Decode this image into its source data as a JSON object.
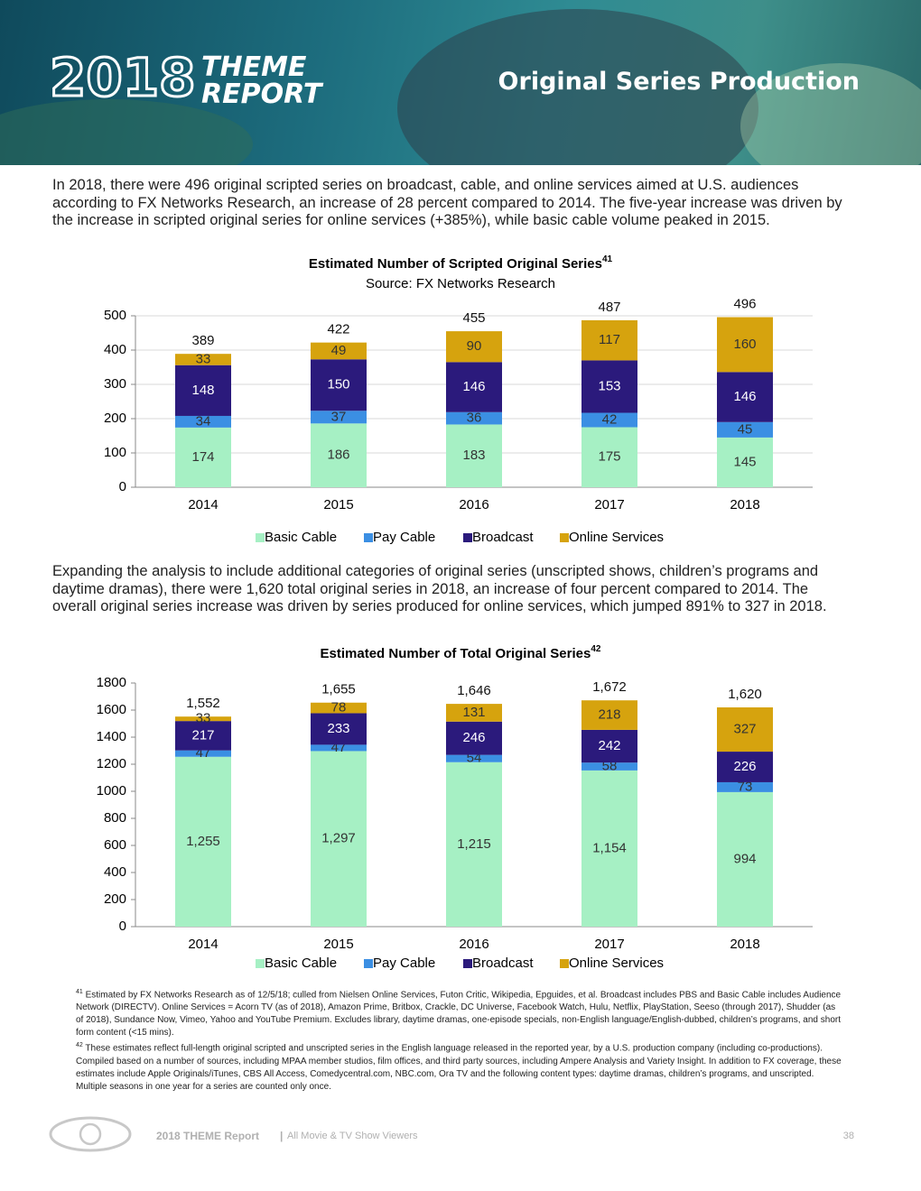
{
  "header": {
    "year": "2018",
    "theme": "THEME",
    "report": "REPORT",
    "title": "Original Series Production"
  },
  "paragraphs": [
    "In 2018, there were 496 original scripted series on broadcast, cable, and online services aimed at U.S. audiences according to FX Networks Research, an increase of 28 percent compared to 2014. The five-year increase was driven by the increase in scripted original series for online services (+385%), while basic cable volume peaked in 2015.",
    "Expanding the analysis to include additional categories of original series (unscripted shows, children’s programs and daytime dramas), there were 1,620 total original series in 2018, an increase of four percent compared to 2014. The overall original series increase was driven by series produced for online services, which jumped 891% to 327 in 2018."
  ],
  "chart_data": [
    {
      "type": "stacked-bar",
      "title": "Estimated Number of Scripted Original Series",
      "title_note": "41",
      "subtitle": "Source: FX Networks Research",
      "categories": [
        "2014",
        "2015",
        "2016",
        "2017",
        "2018"
      ],
      "series": [
        {
          "name": "Basic Cable",
          "color": "#a6f0c4",
          "values": [
            174,
            186,
            183,
            175,
            145
          ]
        },
        {
          "name": "Pay Cable",
          "color": "#3b8fe3",
          "values": [
            34,
            37,
            36,
            42,
            45
          ]
        },
        {
          "name": "Broadcast",
          "color": "#2b1a7c",
          "values": [
            148,
            150,
            146,
            153,
            146
          ]
        },
        {
          "name": "Online Services",
          "color": "#d6a30e",
          "values": [
            33,
            49,
            90,
            117,
            160
          ]
        }
      ],
      "totals": [
        389,
        422,
        455,
        487,
        496
      ],
      "ylim": [
        0,
        500
      ],
      "yticks": [
        0,
        100,
        200,
        300,
        400,
        500
      ],
      "grid": true
    },
    {
      "type": "stacked-bar",
      "title": "Estimated Number of Total Original Series",
      "title_note": "42",
      "categories": [
        "2014",
        "2015",
        "2016",
        "2017",
        "2018"
      ],
      "series": [
        {
          "name": "Basic Cable",
          "color": "#a6f0c4",
          "values": [
            1255,
            1297,
            1215,
            1154,
            994
          ],
          "value_labels": [
            "1,255",
            "1,297",
            "1,215",
            "1,154",
            "994"
          ]
        },
        {
          "name": "Pay Cable",
          "color": "#3b8fe3",
          "values": [
            47,
            47,
            54,
            58,
            73
          ]
        },
        {
          "name": "Broadcast",
          "color": "#2b1a7c",
          "values": [
            217,
            233,
            246,
            242,
            226
          ]
        },
        {
          "name": "Online Services",
          "color": "#d6a30e",
          "values": [
            33,
            78,
            131,
            218,
            327
          ]
        }
      ],
      "totals": [
        1552,
        1655,
        1646,
        1672,
        1620
      ],
      "total_labels": [
        "1,552",
        "1,655",
        "1,646",
        "1,672",
        "1,620"
      ],
      "ylim": [
        0,
        1800
      ],
      "yticks": [
        0,
        200,
        400,
        600,
        800,
        1000,
        1200,
        1400,
        1600,
        1800
      ],
      "grid": false
    }
  ],
  "footnotes": [
    {
      "number": "41",
      "text": "Estimated by FX Networks Research as of 12/5/18; culled from Nielsen Online Services, Futon Critic, Wikipedia, Epguides, et al. Broadcast includes PBS and Basic Cable includes Audience Network (DIRECTV). Online Services = Acorn TV (as of 2018), Amazon Prime, Britbox, Crackle, DC Universe, Facebook Watch, Hulu, Netflix, PlayStation, Seeso (through 2017), Shudder (as of 2018), Sundance Now, Vimeo, Yahoo and YouTube Premium. Excludes library, daytime dramas, one-episode specials, non-English language/English-dubbed, children’s programs, and short form content (<15 mins)."
    },
    {
      "number": "42",
      "text": "These estimates reflect full-length original scripted and unscripted series in the English language released in the reported year, by a U.S. production company (including co-productions). Compiled based on a number of sources, including MPAA member studios, film offices, and third party sources, including Ampere Analysis and Variety Insight. In addition to FX coverage, these estimates include Apple Originals/iTunes, CBS All Access, Comedycentral.com, NBC.com, Ora TV and the following content types: daytime dramas, children’s programs, and unscripted. Multiple seasons in one year for a series are counted only once."
    }
  ],
  "footer": {
    "brand": "2018 THEME Report",
    "separator": "|",
    "subtitle": "All Movie & TV Show Viewers",
    "page": "38"
  }
}
